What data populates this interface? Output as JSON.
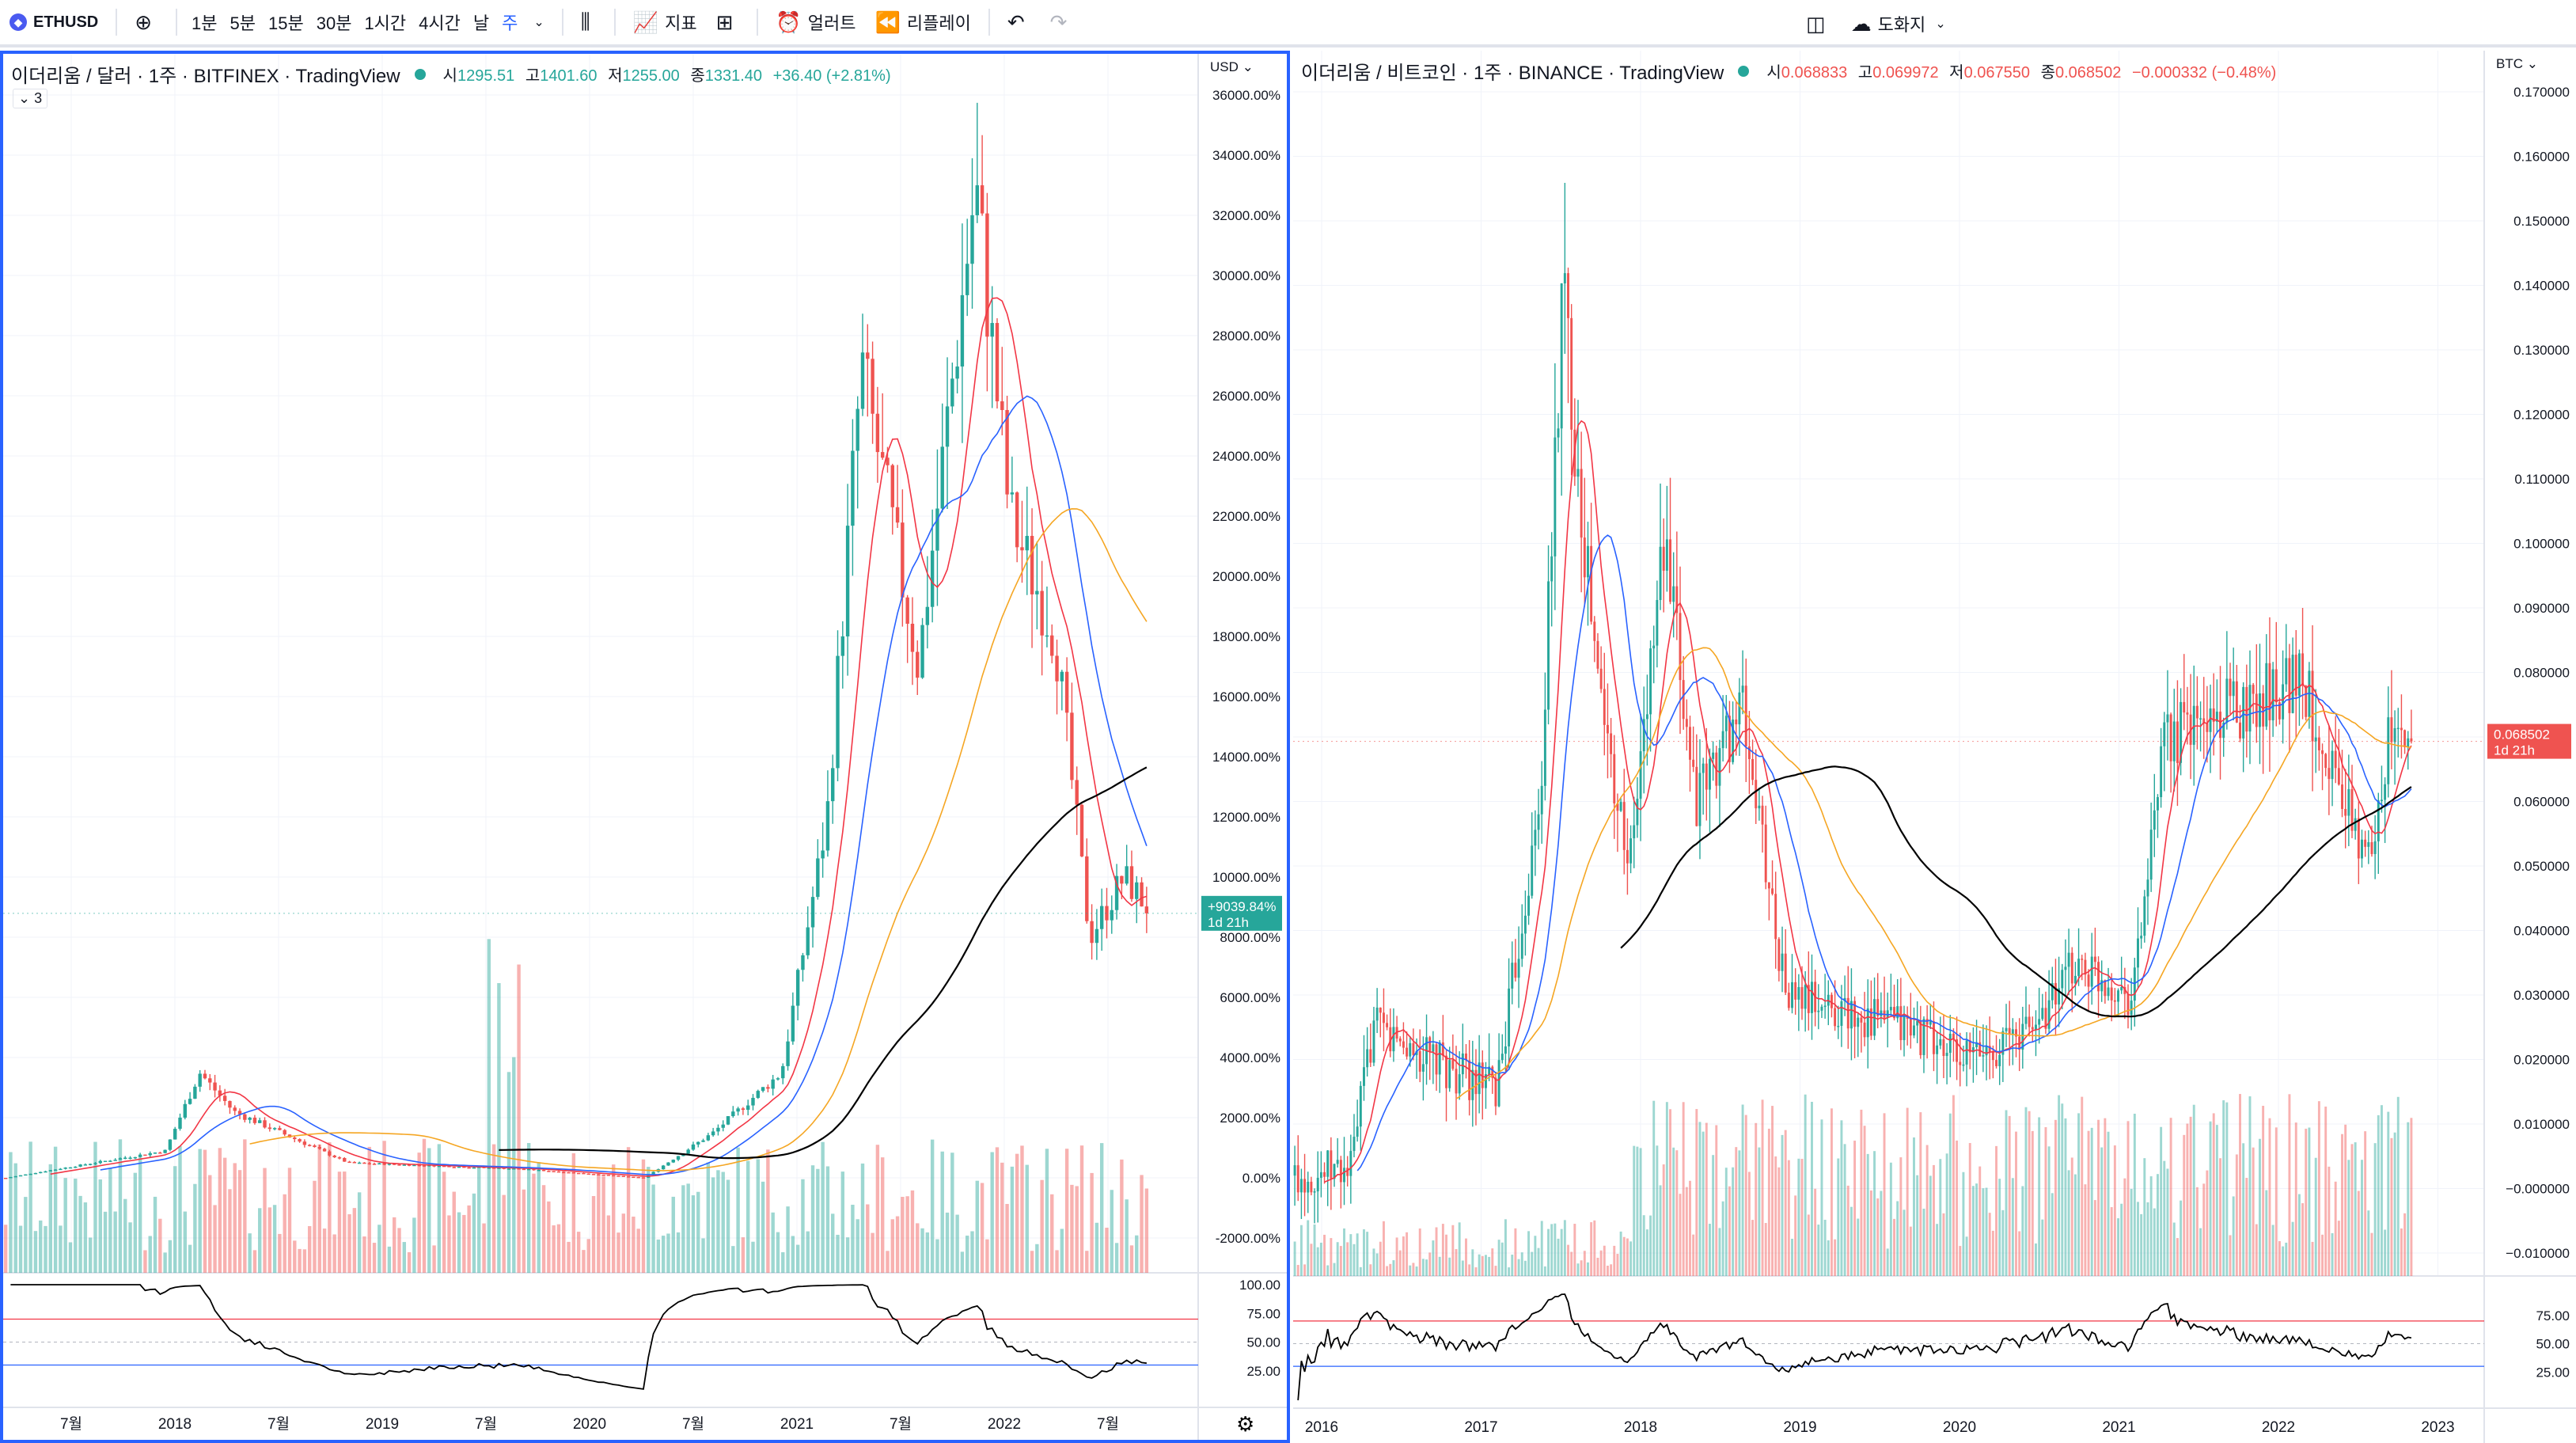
{
  "toolbar": {
    "symbol": "ETHUSD",
    "intervals": [
      "1분",
      "5분",
      "15분",
      "30분",
      "1시간",
      "4시간",
      "날",
      "주"
    ],
    "active_interval": "주",
    "indicators_label": "지표",
    "alert_label": "얼러트",
    "replay_label": "리플레이",
    "drawing_label": "도화지"
  },
  "left_chart": {
    "title": "이더리움 / 달러 · 1주 · BITFINEX · TradingView",
    "ohlc": {
      "o_label": "시",
      "o": "1295.51",
      "h_label": "고",
      "h": "1401.60",
      "l_label": "저",
      "l": "1255.00",
      "c_label": "종",
      "c": "1331.40",
      "change": "+36.40 (+2.81%)"
    },
    "indicator_count": "3",
    "currency": "USD",
    "price_ticks": [
      "36000.00%",
      "34000.00%",
      "32000.00%",
      "30000.00%",
      "28000.00%",
      "26000.00%",
      "24000.00%",
      "22000.00%",
      "20000.00%",
      "18000.00%",
      "16000.00%",
      "14000.00%",
      "12000.00%",
      "10000.00%",
      "8000.00%",
      "6000.00%",
      "4000.00%",
      "2000.00%",
      "0.00%",
      "-2000.00%"
    ],
    "last_label": "+9039.84%",
    "last_countdown": "1d 21h",
    "rsi_ticks": [
      "100.00",
      "75.00",
      "50.00",
      "25.00"
    ],
    "time_ticks": [
      "7월",
      "2018",
      "7월",
      "2019",
      "7월",
      "2020",
      "7월",
      "2021",
      "7월",
      "2022",
      "7월"
    ],
    "accent": "#26a69a"
  },
  "right_chart": {
    "title": "이더리움 / 비트코인 · 1주 · BINANCE · TradingView",
    "ohlc": {
      "o_label": "시",
      "o": "0.068833",
      "h_label": "고",
      "h": "0.069972",
      "l_label": "저",
      "l": "0.067550",
      "c_label": "종",
      "c": "0.068502",
      "change": "−0.000332 (−0.48%)"
    },
    "currency": "BTC",
    "price_ticks": [
      "0.170000",
      "0.160000",
      "0.150000",
      "0.140000",
      "0.130000",
      "0.120000",
      "0.110000",
      "0.100000",
      "0.090000",
      "0.080000",
      "0.070000",
      "0.060000",
      "0.050000",
      "0.040000",
      "0.030000",
      "0.020000",
      "0.010000",
      "−0.000000",
      "−0.010000"
    ],
    "last_label": "0.068502",
    "last_countdown": "1d 21h",
    "rsi_ticks": [
      "75.00",
      "50.00",
      "25.00"
    ],
    "time_ticks": [
      "2016",
      "2017",
      "2018",
      "2019",
      "2020",
      "2021",
      "2022",
      "2023"
    ],
    "accent": "#ef5350"
  },
  "colors": {
    "up": "#26a69a",
    "down": "#ef5350",
    "ma_red": "#f23645",
    "ma_blue": "#2962ff",
    "ma_orange": "#f5a623",
    "ma_black": "#000000"
  },
  "icons": [
    "plus-circle-icon",
    "candles-icon",
    "indicator-icon",
    "layout-icon",
    "alarm-icon",
    "replay-icon",
    "undo-icon",
    "redo-icon",
    "split-icon",
    "cloud-icon"
  ]
}
